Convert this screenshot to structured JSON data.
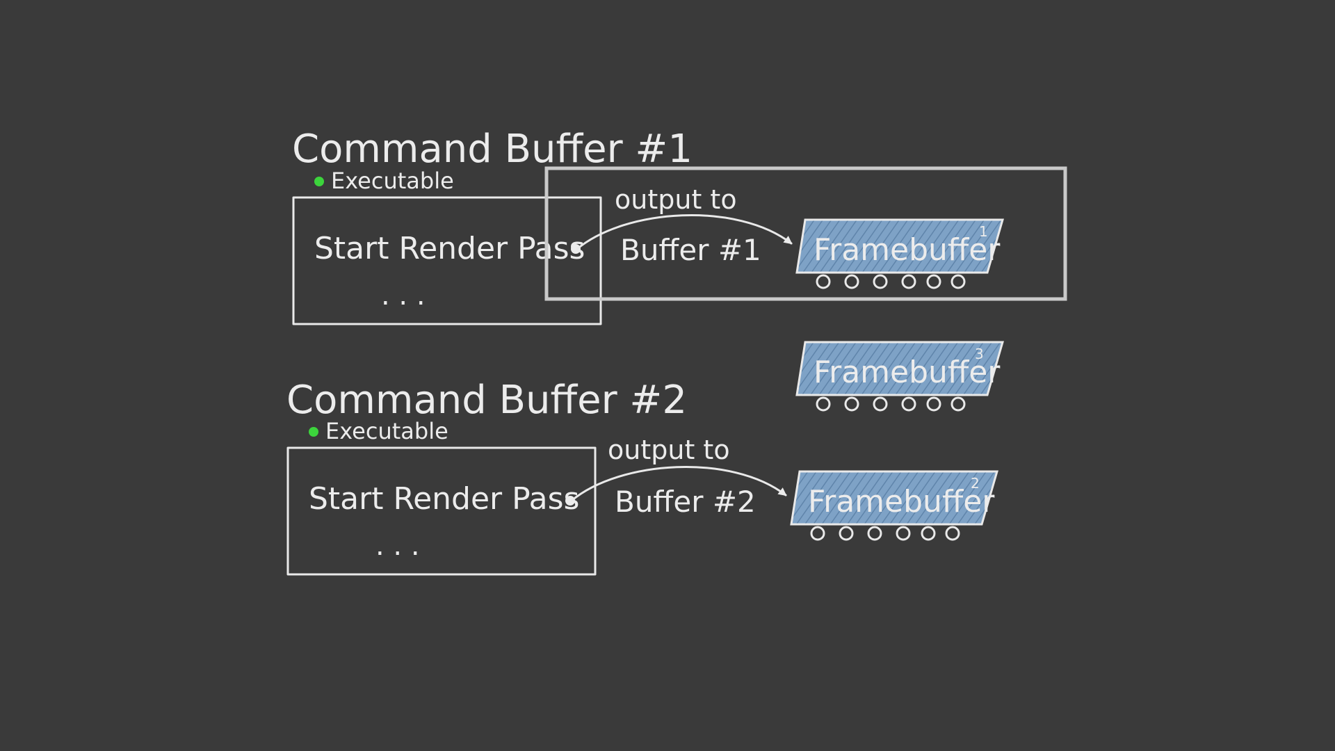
{
  "colors": {
    "background": "#3a3a3a",
    "chalk": "#ececec",
    "executable_dot": "#3cd43c",
    "framebuffer_fill": "#7ea2c6",
    "highlight_box": "#c9c9c9"
  },
  "command_buffers": [
    {
      "title": "Command Buffer #1",
      "status_label": "Executable",
      "command": "Start Render Pass",
      "ellipsis": ". . .",
      "output_label": "output to",
      "target_label": "Buffer #1"
    },
    {
      "title": "Command Buffer #2",
      "status_label": "Executable",
      "command": "Start Render Pass",
      "ellipsis": ". . .",
      "output_label": "output to",
      "target_label": "Buffer #2"
    }
  ],
  "framebuffers": [
    {
      "label": "Framebuffer",
      "index": "1"
    },
    {
      "label": "Framebuffer",
      "index": "3"
    },
    {
      "label": "Framebuffer",
      "index": "2"
    }
  ]
}
